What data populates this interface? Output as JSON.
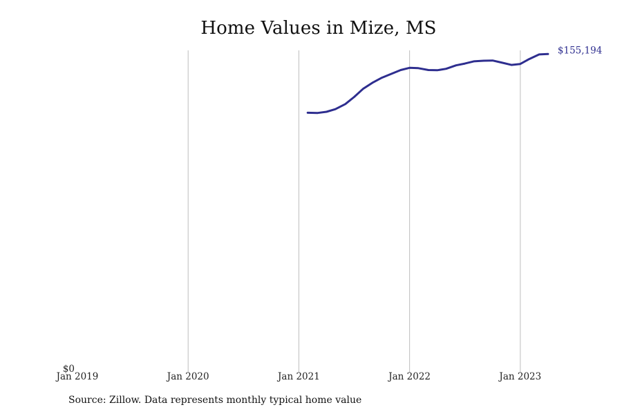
{
  "chart_data": {
    "type": "line",
    "title": "Home Values in Mize, MS",
    "xlabel": "",
    "ylabel": "",
    "x_ticks": [
      {
        "label": "Jan 2019",
        "value": 2019.0
      },
      {
        "label": "Jan 2020",
        "value": 2020.0
      },
      {
        "label": "Jan 2021",
        "value": 2021.0
      },
      {
        "label": "Jan 2022",
        "value": 2022.0
      },
      {
        "label": "Jan 2023",
        "value": 2023.0
      }
    ],
    "y_tick_label": "$0",
    "xlim": [
      2019.0,
      2023.75
    ],
    "ylim": [
      0,
      157000
    ],
    "grid": "vertical",
    "line_color": "#2e2e8f",
    "end_label": "$155,194",
    "series": [
      {
        "name": "Typical home value",
        "x": [
          2021.08,
          2021.17,
          2021.25,
          2021.33,
          2021.42,
          2021.5,
          2021.58,
          2021.67,
          2021.75,
          2021.83,
          2021.92,
          2022.0,
          2022.08,
          2022.17,
          2022.25,
          2022.33,
          2022.42,
          2022.5,
          2022.58,
          2022.67,
          2022.75,
          2022.83,
          2022.92,
          2023.0,
          2023.08,
          2023.17,
          2023.25
        ],
        "values": [
          126200,
          126100,
          126700,
          128000,
          130500,
          134000,
          138000,
          141200,
          143500,
          145300,
          147300,
          148400,
          148200,
          147300,
          147200,
          147900,
          149600,
          150500,
          151600,
          151900,
          152000,
          151000,
          149800,
          150300,
          152700,
          155000,
          155194
        ]
      }
    ]
  },
  "source": "Source: Zillow. Data represents monthly typical home value"
}
